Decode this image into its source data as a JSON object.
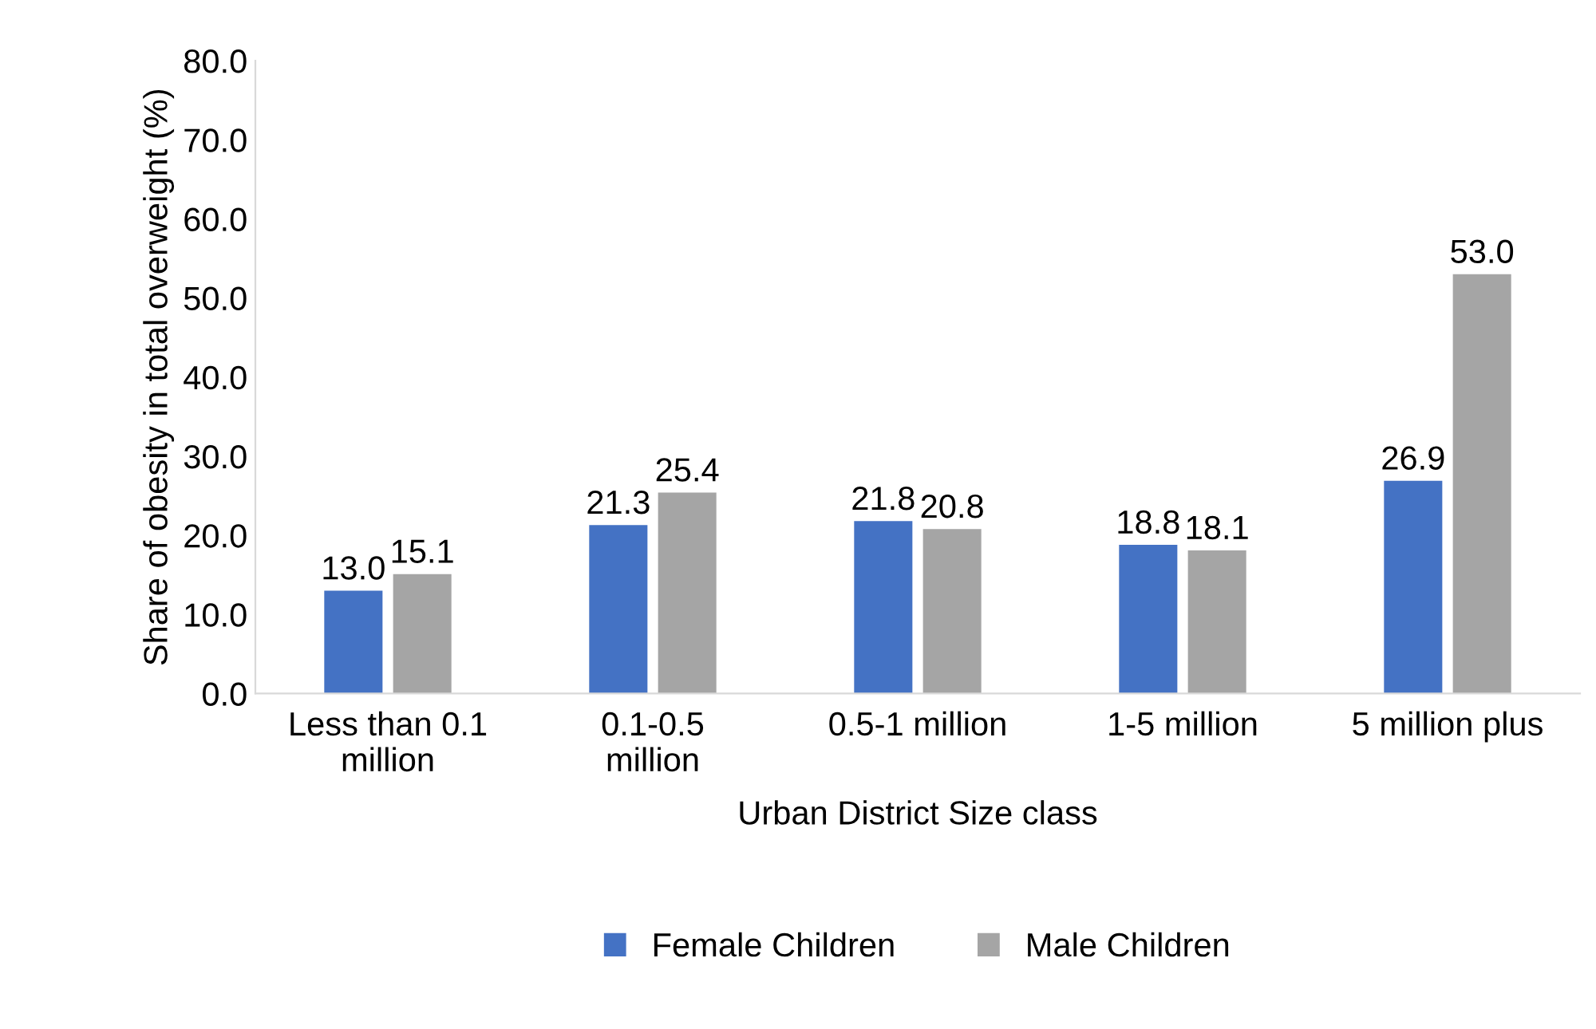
{
  "chart_data": {
    "type": "bar",
    "xlabel": "Urban District Size class",
    "ylabel": "Share of obesity in total overweight (%)",
    "categories": [
      "Less than 0.1\nmillion",
      "0.1-0.5\nmillion",
      "0.5-1 million",
      "1-5 million",
      "5 million plus"
    ],
    "series": [
      {
        "name": "Female Children",
        "color": "#4472c4",
        "values": [
          13.0,
          21.3,
          21.8,
          18.8,
          26.9
        ],
        "value_labels": [
          "13.0",
          "21.3",
          "21.8",
          "18.8",
          "26.9"
        ]
      },
      {
        "name": "Male Children",
        "color": "#a5a5a5",
        "values": [
          15.1,
          25.4,
          20.8,
          18.1,
          53.0
        ],
        "value_labels": [
          "15.1",
          "25.4",
          "20.8",
          "18.1",
          "53.0"
        ]
      }
    ],
    "ylim": [
      0,
      80
    ],
    "yticks": [
      {
        "value": 0,
        "label": "0.0"
      },
      {
        "value": 10,
        "label": "10.0"
      },
      {
        "value": 20,
        "label": "20.0"
      },
      {
        "value": 30,
        "label": "30.0"
      },
      {
        "value": 40,
        "label": "40.0"
      },
      {
        "value": 50,
        "label": "50.0"
      },
      {
        "value": 60,
        "label": "60.0"
      },
      {
        "value": 70,
        "label": "70.0"
      },
      {
        "value": 80,
        "label": "80.0"
      }
    ],
    "grid": false,
    "legend": "bottom"
  }
}
